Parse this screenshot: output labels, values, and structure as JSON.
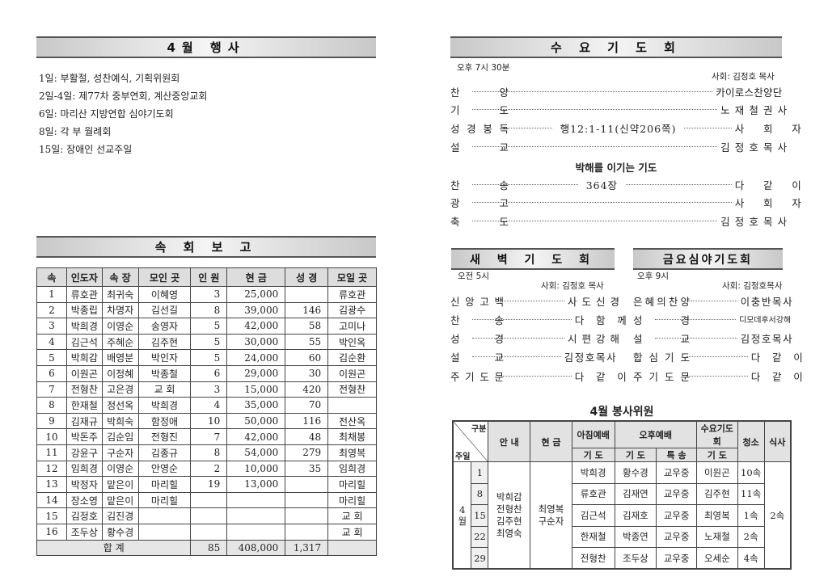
{
  "events": {
    "title": "4월 행사",
    "items": [
      "1일: 부활절, 성찬예식, 기획위원회",
      "2일-4일: 제77차 중부연회, 계산중앙교회",
      "6일: 마리산 지방연합 심야기도회",
      "8일: 각 부 월례회",
      "15일: 장애인 선교주일"
    ]
  },
  "report": {
    "title": "속 회 보 고",
    "headers": [
      "속",
      "인도자",
      "속 장",
      "모인 곳",
      "인 원",
      "현 금",
      "성 경",
      "모일 곳"
    ],
    "rows": [
      [
        "1",
        "류호관",
        "최귀숙",
        "이혜영",
        "3",
        "25,000",
        "",
        "류호관"
      ],
      [
        "2",
        "박종립",
        "차명자",
        "김선길",
        "8",
        "39,000",
        "146",
        "김광수"
      ],
      [
        "3",
        "박희경",
        "이영순",
        "송영자",
        "5",
        "42,000",
        "58",
        "고미나"
      ],
      [
        "4",
        "김근석",
        "주혜순",
        "김주현",
        "5",
        "30,000",
        "55",
        "박인옥"
      ],
      [
        "5",
        "박희감",
        "배영분",
        "박인자",
        "5",
        "24,000",
        "60",
        "김순환"
      ],
      [
        "6",
        "이원곤",
        "이정혜",
        "박종철",
        "6",
        "29,000",
        "30",
        "이원곤"
      ],
      [
        "7",
        "전형찬",
        "고은경",
        "교 회",
        "3",
        "15,000",
        "420",
        "전형찬"
      ],
      [
        "8",
        "한재철",
        "정선옥",
        "박희경",
        "4",
        "35,000",
        "70",
        ""
      ],
      [
        "9",
        "김재규",
        "박희숙",
        "함정애",
        "10",
        "50,000",
        "116",
        "전산옥"
      ],
      [
        "10",
        "박돈주",
        "김순임",
        "전형진",
        "7",
        "42,000",
        "48",
        "최채봉"
      ],
      [
        "11",
        "강윤구",
        "구순자",
        "김종규",
        "8",
        "54,000",
        "279",
        "최영복"
      ],
      [
        "12",
        "임희경",
        "이영순",
        "안영순",
        "2",
        "10,000",
        "35",
        "임희경"
      ],
      [
        "13",
        "박정자",
        "맡은이",
        "마리힐",
        "19",
        "13,000",
        "",
        "마리힐"
      ],
      [
        "14",
        "장소영",
        "맡은이",
        "마리힐",
        "",
        "",
        "",
        "마리힐"
      ],
      [
        "15",
        "김정호",
        "김진경",
        "",
        "",
        "",
        "",
        "교 회"
      ],
      [
        "16",
        "조두상",
        "황수경",
        "",
        "",
        "",
        "",
        "교 회"
      ]
    ],
    "total": {
      "label": "합 계",
      "people": "85",
      "offering": "408,000",
      "bible": "1,317"
    }
  },
  "wednesday": {
    "title": "수 요 기 도 회",
    "time": "오후 7시 30분",
    "host": "사회: 김정호 목사",
    "items": [
      {
        "k": "찬양",
        "v": "카이로스찬양단"
      },
      {
        "k": "기도",
        "v": "노재철권사"
      },
      {
        "k": "성경봉독",
        "mid": "행12:1-11(신약206쪽)",
        "v": "사회자"
      },
      {
        "k": "설교",
        "v": "김정호목사"
      }
    ],
    "subtitle": "박해를 이기는 기도",
    "items2": [
      {
        "k": "찬송",
        "mid": "364장",
        "v": "다같이"
      },
      {
        "k": "광고",
        "v": "사회자"
      },
      {
        "k": "축도",
        "v": "김정호목사"
      }
    ]
  },
  "dawn": {
    "title": "새 벽 기 도 회",
    "time": "오전 5시",
    "host": "사회: 김정호 목사",
    "items": [
      {
        "k": "신앙고백",
        "v": "사도신경"
      },
      {
        "k": "찬송",
        "v": "다함께"
      },
      {
        "k": "성경",
        "v": "시편강해"
      },
      {
        "k": "설교",
        "v": "김정호목사"
      },
      {
        "k": "주기도문",
        "v": "다같이"
      }
    ]
  },
  "friday": {
    "title": "금요심야기도회",
    "time": "오후 9시",
    "host": "사회: 김정호목사",
    "items": [
      {
        "k": "은혜의찬양",
        "v": "이충반목사"
      },
      {
        "k": "성경",
        "v": "디모데후서강해"
      },
      {
        "k": "설교",
        "v": "김정호목사"
      },
      {
        "k": "합심기도",
        "v": "다같이"
      },
      {
        "k": "주기도문",
        "v": "다같이"
      }
    ]
  },
  "volunteers": {
    "title": "4월 봉사위원",
    "header": {
      "gubun": "구분",
      "week": "주일",
      "guide": "안 내",
      "offering": "현 금",
      "morning": "아침예배",
      "afternoon": "오후예배",
      "wed": "수요기도회",
      "prayer": "기 도",
      "special": "특 송",
      "clean": "청소",
      "meal": "식사"
    },
    "month": "4월",
    "guides": "박희감\n전형찬\n김주현\n최영숙",
    "offerers": "최영복\n구순자",
    "meal": "2속",
    "rows": [
      {
        "day": "1",
        "morning": "박희경",
        "aft": "황수경",
        "special": "교우중",
        "wed": "이원곤",
        "clean": "10속"
      },
      {
        "day": "8",
        "morning": "류호관",
        "aft": "김재연",
        "special": "교우중",
        "wed": "김주현",
        "clean": "11속"
      },
      {
        "day": "15",
        "morning": "김근석",
        "aft": "김재호",
        "special": "교우중",
        "wed": "최영복",
        "clean": "1속"
      },
      {
        "day": "22",
        "morning": "한재철",
        "aft": "박종연",
        "special": "교우중",
        "wed": "노재철",
        "clean": "2속"
      },
      {
        "day": "29",
        "morning": "전형찬",
        "aft": "조두상",
        "special": "교우중",
        "wed": "오세순",
        "clean": "4속"
      }
    ]
  }
}
